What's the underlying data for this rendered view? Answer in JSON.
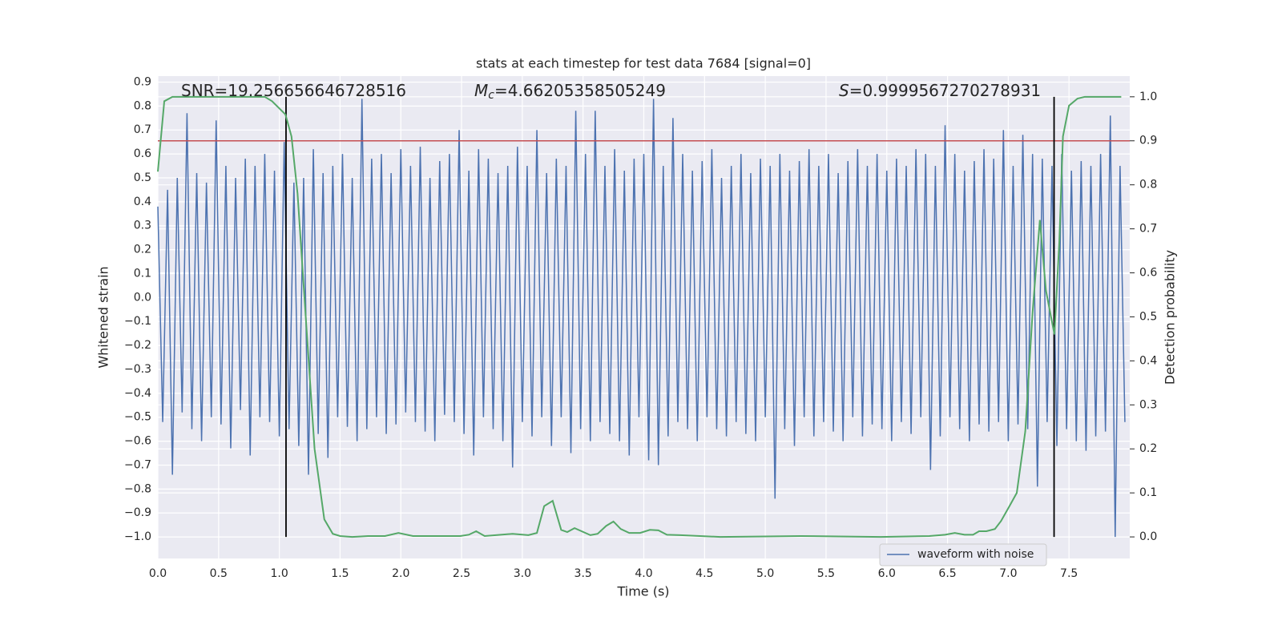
{
  "chart_data": {
    "type": "line",
    "title": "stats at each timestep for test data 7684 [signal=0]",
    "xlabel": "Time (s)",
    "ylabel": "Whitened strain",
    "y2label": "Detection probability",
    "xlim": [
      0,
      8.0
    ],
    "ylim": [
      -1.09,
      0.925
    ],
    "y2lim": [
      -0.049,
      1.047
    ],
    "xticks": [
      {
        "value": 0,
        "label": "0.0"
      },
      0.5,
      {
        "value": 1,
        "label": "1.0"
      },
      1.5,
      {
        "value": 2,
        "label": "2.0"
      },
      2.5,
      {
        "value": 3,
        "label": "3.0"
      },
      3.5,
      {
        "value": 4,
        "label": "4.0"
      },
      4.5,
      {
        "value": 5,
        "label": "5.0"
      },
      5.5,
      {
        "value": 6,
        "label": "6.0"
      },
      6.5,
      {
        "value": 7,
        "label": "7.0"
      },
      7.5
    ],
    "yticks": [
      {
        "value": -1,
        "label": "−1.0"
      },
      {
        "value": -0.9,
        "label": "−0.9"
      },
      {
        "value": -0.8,
        "label": "−0.8"
      },
      {
        "value": -0.7,
        "label": "−0.7"
      },
      {
        "value": -0.6,
        "label": "−0.6"
      },
      {
        "value": -0.5,
        "label": "−0.5"
      },
      {
        "value": -0.4,
        "label": "−0.4"
      },
      {
        "value": -0.3,
        "label": "−0.3"
      },
      {
        "value": -0.2,
        "label": "−0.2"
      },
      {
        "value": -0.1,
        "label": "−0.1"
      },
      {
        "value": 0,
        "label": "0.0"
      },
      0.1,
      0.2,
      0.3,
      0.4,
      0.5,
      0.6,
      0.7,
      0.8,
      0.9
    ],
    "y2ticks": [
      {
        "value": 0,
        "label": "0.0"
      },
      0.1,
      0.2,
      0.3,
      0.4,
      0.5,
      0.6,
      0.7,
      0.8,
      0.9,
      {
        "value": 1,
        "label": "1.0"
      }
    ],
    "grid": true,
    "legend": "lower right",
    "annotations": [
      {
        "text": "SNR=19.256656646728516"
      },
      {
        "symbol": "M",
        "subscript": "c",
        "text": "=4.66205358505249"
      },
      {
        "symbol": "S",
        "text": "=0.9999567270278931"
      }
    ],
    "series": [
      {
        "name": "waveform with noise",
        "color": "#4c72b0",
        "x": [
          0,
          0.04,
          0.08,
          0.12,
          0.16,
          0.2,
          0.24,
          0.28,
          0.32,
          0.36,
          0.4,
          0.44,
          0.48,
          0.52,
          0.56,
          0.6,
          0.64,
          0.68,
          0.72,
          0.76,
          0.8,
          0.84,
          0.88,
          0.92,
          0.96,
          1,
          1.04,
          1.08,
          1.12,
          1.16,
          1.2,
          1.24,
          1.28,
          1.32,
          1.36,
          1.4,
          1.44,
          1.48,
          1.52,
          1.56,
          1.6,
          1.64,
          1.68,
          1.72,
          1.76,
          1.8,
          1.84,
          1.88,
          1.92,
          1.96,
          2,
          2.04,
          2.08,
          2.12,
          2.16,
          2.2,
          2.24,
          2.28,
          2.32,
          2.36,
          2.4,
          2.44,
          2.48,
          2.52,
          2.56,
          2.6,
          2.64,
          2.68,
          2.72,
          2.76,
          2.8,
          2.84,
          2.88,
          2.92,
          2.96,
          3,
          3.04,
          3.08,
          3.12,
          3.16,
          3.2,
          3.24,
          3.28,
          3.32,
          3.36,
          3.4,
          3.44,
          3.48,
          3.52,
          3.56,
          3.6,
          3.64,
          3.68,
          3.72,
          3.76,
          3.8,
          3.84,
          3.88,
          3.92,
          3.96,
          4,
          4.04,
          4.08,
          4.12,
          4.16,
          4.2,
          4.24,
          4.28,
          4.32,
          4.36,
          4.4,
          4.44,
          4.48,
          4.52,
          4.56,
          4.6,
          4.64,
          4.68,
          4.72,
          4.76,
          4.8,
          4.84,
          4.88,
          4.92,
          4.96,
          5,
          5.04,
          5.08,
          5.12,
          5.16,
          5.2,
          5.24,
          5.28,
          5.32,
          5.36,
          5.4,
          5.44,
          5.48,
          5.52,
          5.56,
          5.6,
          5.64,
          5.68,
          5.72,
          5.76,
          5.8,
          5.84,
          5.88,
          5.92,
          5.96,
          6,
          6.04,
          6.08,
          6.12,
          6.16,
          6.2,
          6.24,
          6.28,
          6.32,
          6.36,
          6.4,
          6.44,
          6.48,
          6.52,
          6.56,
          6.6,
          6.64,
          6.68,
          6.72,
          6.76,
          6.8,
          6.84,
          6.88,
          6.92,
          6.96,
          7,
          7.04,
          7.08,
          7.12,
          7.16,
          7.2,
          7.24,
          7.28,
          7.32,
          7.36,
          7.4,
          7.44,
          7.48,
          7.52,
          7.56,
          7.6,
          7.64,
          7.68,
          7.72,
          7.76,
          7.8,
          7.84,
          7.88,
          7.92,
          7.96
        ],
        "values": [
          0.38,
          -0.52,
          0.45,
          -0.74,
          0.5,
          -0.48,
          0.77,
          -0.55,
          0.52,
          -0.6,
          0.48,
          -0.5,
          0.74,
          -0.53,
          0.55,
          -0.63,
          0.5,
          -0.47,
          0.58,
          -0.66,
          0.55,
          -0.5,
          0.6,
          -0.52,
          0.53,
          -0.58,
          0.65,
          -0.55,
          0.48,
          -0.62,
          0.5,
          -0.74,
          0.62,
          -0.57,
          0.52,
          -0.67,
          0.55,
          -0.5,
          0.6,
          -0.54,
          0.5,
          -0.6,
          0.83,
          -0.55,
          0.58,
          -0.5,
          0.6,
          -0.57,
          0.52,
          -0.53,
          0.62,
          -0.48,
          0.55,
          -0.52,
          0.63,
          -0.56,
          0.5,
          -0.6,
          0.57,
          -0.49,
          0.6,
          -0.52,
          0.7,
          -0.57,
          0.53,
          -0.66,
          0.62,
          -0.5,
          0.58,
          -0.55,
          0.52,
          -0.6,
          0.55,
          -0.71,
          0.63,
          -0.52,
          0.55,
          -0.58,
          0.7,
          -0.5,
          0.52,
          -0.62,
          0.58,
          -0.5,
          0.55,
          -0.65,
          0.78,
          -0.55,
          0.6,
          -0.6,
          0.78,
          -0.52,
          0.55,
          -0.57,
          0.62,
          -0.6,
          0.53,
          -0.66,
          0.58,
          -0.5,
          0.6,
          -0.68,
          0.83,
          -0.7,
          0.55,
          -0.58,
          0.75,
          -0.52,
          0.6,
          -0.55,
          0.53,
          -0.6,
          0.57,
          -0.5,
          0.62,
          -0.55,
          0.5,
          -0.58,
          0.55,
          -0.52,
          0.6,
          -0.57,
          0.52,
          -0.6,
          0.58,
          -0.5,
          0.55,
          -0.84,
          0.6,
          -0.55,
          0.53,
          -0.62,
          0.57,
          -0.5,
          0.62,
          -0.58,
          0.55,
          -0.52,
          0.6,
          -0.56,
          0.52,
          -0.6,
          0.57,
          -0.5,
          0.62,
          -0.58,
          0.55,
          -0.53,
          0.6,
          -0.55,
          0.53,
          -0.6,
          0.58,
          -0.52,
          0.55,
          -0.57,
          0.62,
          -0.5,
          0.6,
          -0.72,
          0.55,
          -0.58,
          0.72,
          -0.5,
          0.6,
          -0.55,
          0.53,
          -0.6,
          0.57,
          -0.53,
          0.62,
          -0.56,
          0.58,
          -0.52,
          0.7,
          -0.6,
          0.55,
          -0.53,
          0.68,
          -0.55,
          0.6,
          -0.79,
          0.58,
          -0.52,
          0.55,
          -0.62,
          0.6,
          -0.55,
          0.53,
          -0.6,
          0.57,
          -0.64,
          0.55,
          -0.58,
          0.6,
          -0.56,
          0.76,
          -1.0,
          0.55,
          -0.52
        ]
      }
    ],
    "probability": {
      "color": "#55a868",
      "axis": "y2",
      "x": [
        0,
        0.053,
        0.12,
        0.88,
        0.94,
        1.05,
        1.1,
        1.15,
        1.21,
        1.29,
        1.37,
        1.44,
        1.5,
        1.6,
        1.73,
        1.87,
        1.98,
        2.1,
        2.49,
        2.56,
        2.62,
        2.69,
        2.92,
        3.05,
        3.12,
        3.18,
        3.25,
        3.32,
        3.37,
        3.43,
        3.56,
        3.62,
        3.69,
        3.75,
        3.81,
        3.88,
        3.97,
        4.05,
        4.12,
        4.19,
        4.3,
        4.63,
        5.29,
        5.95,
        6.35,
        6.48,
        6.56,
        6.64,
        6.71,
        6.76,
        6.82,
        6.89,
        6.94,
        7.01,
        7.07,
        7.14,
        7.2,
        7.26,
        7.31,
        7.38,
        7.42,
        7.45,
        7.5,
        7.57,
        7.63,
        7.93
      ],
      "values": [
        0.83,
        0.99,
        1.0,
        1.0,
        0.99,
        0.96,
        0.91,
        0.78,
        0.53,
        0.2,
        0.04,
        0.007,
        0.002,
        0,
        0.002,
        0.002,
        0.009,
        0.002,
        0.002,
        0.005,
        0.013,
        0.002,
        0.007,
        0.004,
        0.009,
        0.07,
        0.082,
        0.016,
        0.011,
        0.02,
        0.004,
        0.007,
        0.025,
        0.035,
        0.018,
        0.009,
        0.009,
        0.016,
        0.015,
        0.005,
        0.004,
        0,
        0.002,
        0,
        0.002,
        0.005,
        0.009,
        0.005,
        0.005,
        0.013,
        0.013,
        0.018,
        0.036,
        0.07,
        0.1,
        0.24,
        0.51,
        0.72,
        0.56,
        0.46,
        0.67,
        0.91,
        0.98,
        0.996,
        1.0,
        1.0
      ]
    },
    "threshold": {
      "value": 0.9,
      "axis": "y2",
      "color": "#c44e52"
    },
    "vlines": {
      "x": [
        1.055,
        7.377
      ],
      "ymin": 0,
      "ymax": 1,
      "axis": "y2",
      "color": "#000000"
    }
  }
}
